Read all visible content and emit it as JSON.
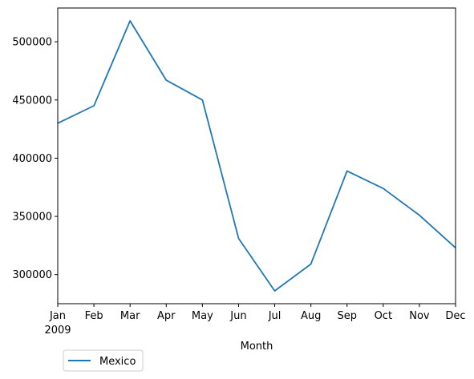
{
  "chart_data": {
    "type": "line",
    "title": "",
    "xlabel": "Month",
    "ylabel": "",
    "x": [
      "Jan",
      "Feb",
      "Mar",
      "Apr",
      "May",
      "Jun",
      "Jul",
      "Aug",
      "Sep",
      "Oct",
      "Nov",
      "Dec"
    ],
    "year_label": "2009",
    "series": [
      {
        "name": "Mexico",
        "color": "#1f77b4",
        "values": [
          430000,
          445000,
          518000,
          467000,
          450000,
          331000,
          286000,
          309000,
          389000,
          374000,
          351000,
          323000
        ]
      }
    ],
    "yticks": [
      300000,
      350000,
      400000,
      450000,
      500000
    ],
    "ylim": [
      275000,
      529000
    ],
    "grid": false,
    "legend": "below-left"
  }
}
